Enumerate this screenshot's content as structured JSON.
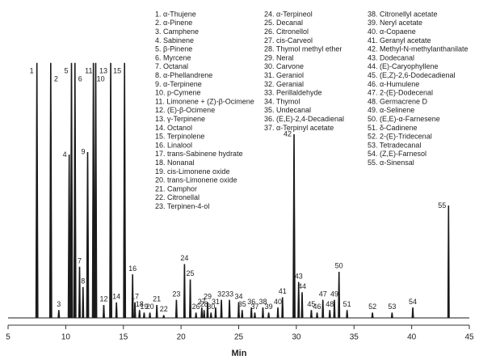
{
  "chart_data": {
    "type": "chromatogram",
    "xlabel": "Min",
    "xlim": [
      5,
      45
    ],
    "xticks": [
      5,
      10,
      15,
      20,
      25,
      30,
      35,
      40,
      45
    ],
    "ylim": [
      0,
      100
    ],
    "color": "#1a1a1a",
    "peak_labels": [
      "1",
      "2",
      "3",
      "4",
      "5",
      "6",
      "7",
      "8",
      "9",
      "10",
      "11",
      "12",
      "13",
      "14",
      "15",
      "16",
      "17",
      "18",
      "19",
      "20",
      "21",
      "22",
      "23",
      "24",
      "25",
      "26",
      "27",
      "28",
      "29",
      "30",
      "31",
      "32",
      "33",
      "34",
      "35",
      "36",
      "37",
      "38",
      "39",
      "40",
      "41",
      "42",
      "43",
      "44",
      "45",
      "46",
      "47",
      "48",
      "49",
      "50",
      "51",
      "52",
      "53",
      "54",
      "55"
    ],
    "x": [
      7.5,
      8.7,
      9.4,
      10.3,
      10.5,
      10.8,
      11.2,
      11.5,
      11.9,
      12.4,
      12.6,
      13.3,
      13.9,
      14.4,
      15.1,
      15.8,
      16.0,
      16.4,
      16.8,
      17.3,
      17.9,
      18.5,
      19.6,
      20.3,
      20.8,
      21.3,
      21.8,
      22.0,
      22.3,
      22.6,
      23.0,
      23.5,
      24.2,
      25.0,
      25.3,
      26.1,
      26.4,
      27.1,
      27.6,
      28.4,
      28.8,
      29.8,
      30.2,
      30.5,
      31.3,
      31.8,
      32.3,
      32.9,
      33.3,
      33.7,
      34.4,
      36.6,
      38.3,
      40.1,
      43.2
    ],
    "values": [
      100,
      100,
      3,
      64,
      100,
      100,
      20,
      12,
      65,
      100,
      100,
      5,
      100,
      6,
      100,
      17,
      6,
      3,
      2,
      2,
      5,
      1,
      7,
      21,
      15,
      2,
      4,
      3,
      6,
      2,
      4,
      7,
      7,
      6,
      3,
      4,
      2,
      4,
      2,
      4,
      8,
      72,
      14,
      10,
      3,
      2,
      7,
      3,
      7,
      18,
      3,
      2,
      2,
      4,
      44
    ],
    "compounds": [
      "1. α-Thujene",
      "2. α-Pinene",
      "3. Camphene",
      "4. Sabinene",
      "5. β-Pinene",
      "6. Myrcene",
      "7. Octanal",
      "8. α-Phellandrene",
      "9. α-Terpinene",
      "10. p-Cymene",
      "11. Limonene + (Z)-β-Ocimene",
      "12. (E)-β-Ocimene",
      "13. γ-Terpinene",
      "14. Octanol",
      "15. Terpinolene",
      "16. Linalool",
      "17. trans-Sabinene hydrate",
      "18. Nonanal",
      "19. cis-Limonene oxide",
      "20. trans-Limonene oxide",
      "21. Camphor",
      "22. Citronellal",
      "23. Terpinen-4-ol",
      "24. α-Terpineol",
      "25. Decanal",
      "26. Citronellol",
      "27. cis-Carveol",
      "28. Thymol methyl ether",
      "29. Neral",
      "30. Carvone",
      "31. Geraniol",
      "32. Geranial",
      "33. Perillaldehyde",
      "34. Thymol",
      "35. Undecanal",
      "36. (E,E)-2,4-Decadienal",
      "37. α-Terpinyl acetate",
      "38. Citronellyl acetate",
      "39. Neryl acetate",
      "40. α-Copaene",
      "41. Geranyl acetate",
      "42. Methyl-N-methylanthanilate",
      "43. Dodecanal",
      "44. (E)-Caryophyllene",
      "45. (E,Z)-2,6-Dodecadienal",
      "46. α-Humulene",
      "47. 2-(E)-Dodecenal",
      "48. Germacrene D",
      "49. α-Selinene",
      "50. (E,E)-α-Farnesene",
      "51. δ-Cadinene",
      "52. 2-(E)-Tridecenal",
      "53. Tetradecanal",
      "54. (Z,E)-Farnesol",
      "55. α-Sinensal"
    ]
  }
}
